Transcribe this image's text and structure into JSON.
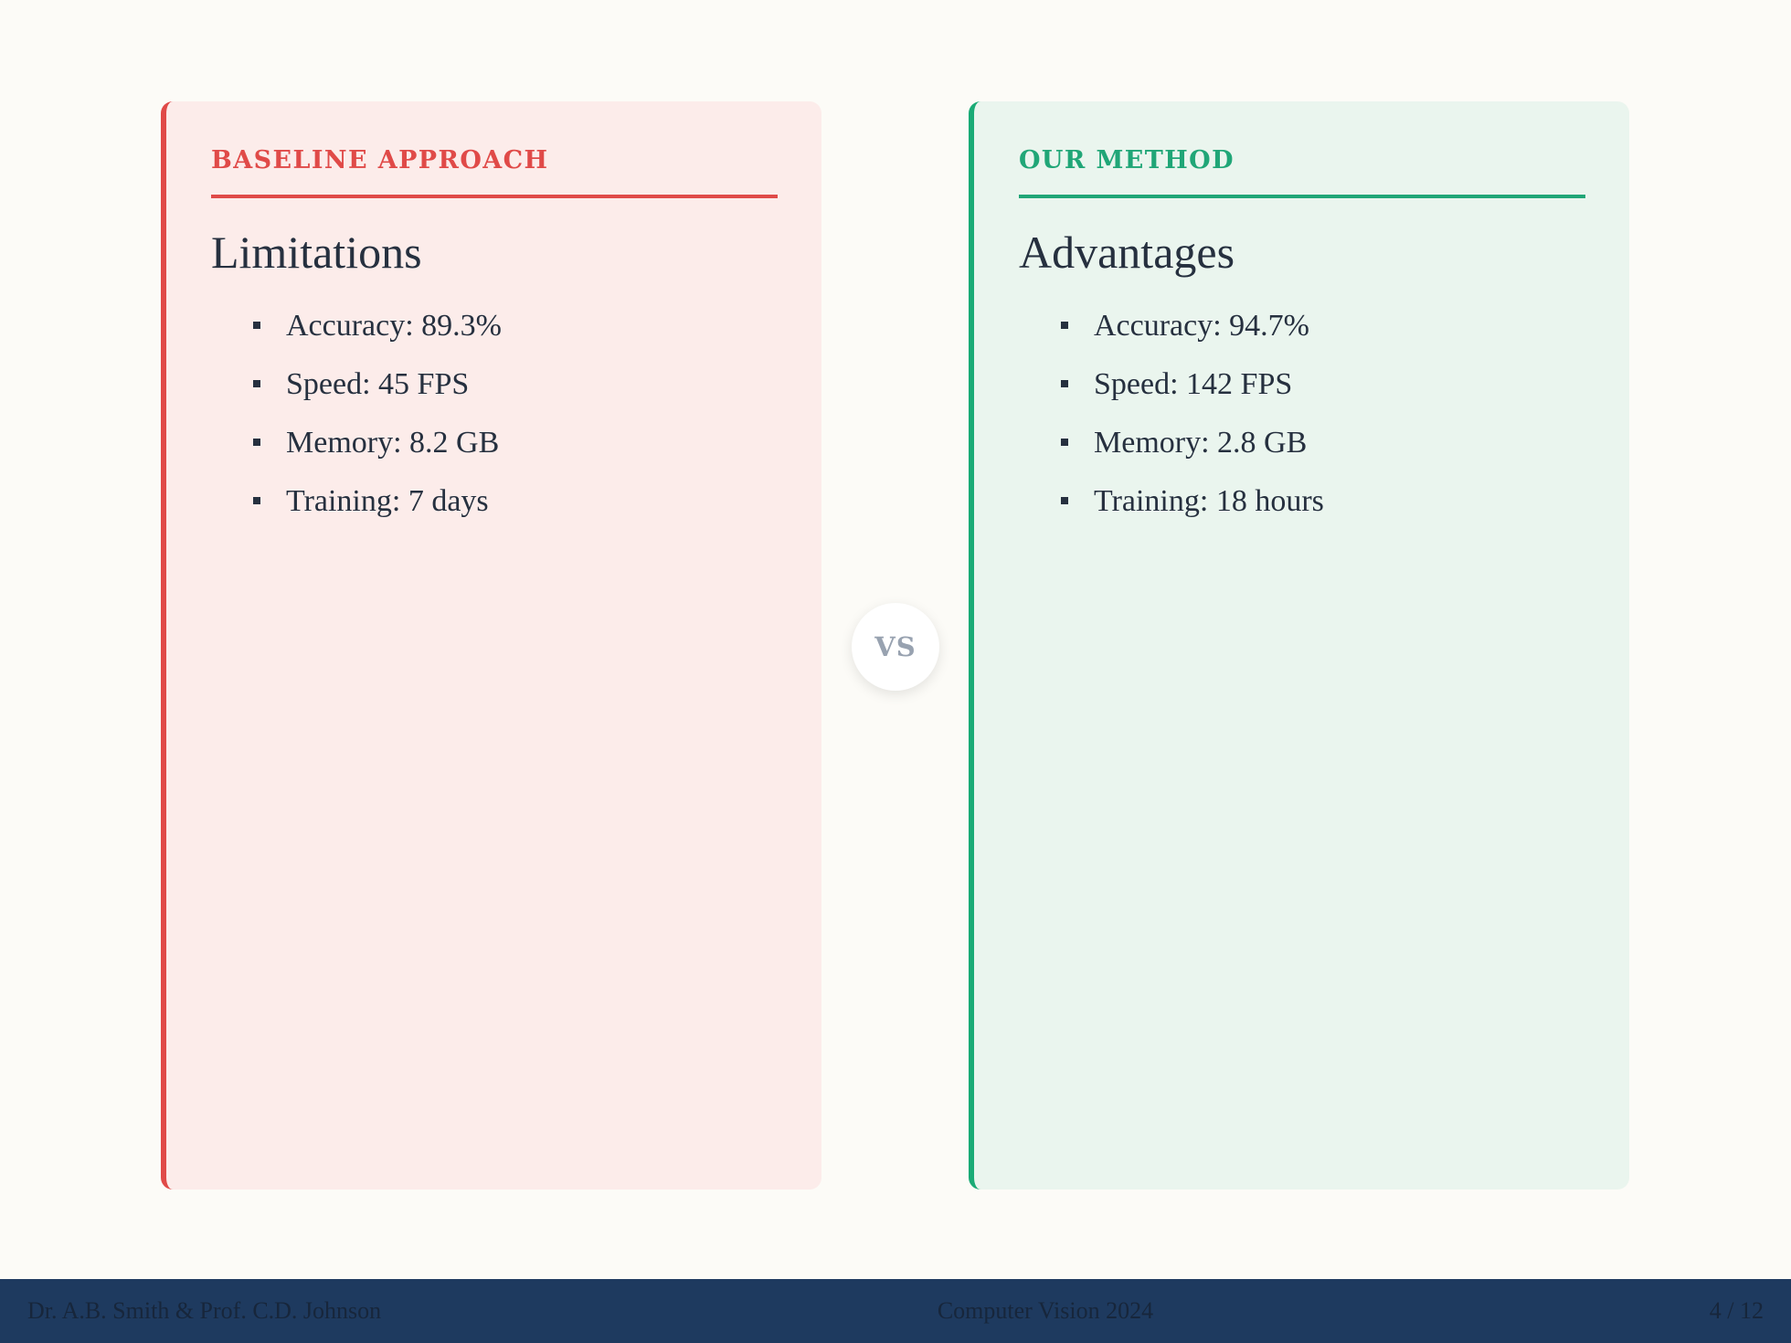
{
  "baseline": {
    "label": "Baseline Approach",
    "heading": "Limitations",
    "points": [
      "Accuracy: 89.3%",
      "Speed: 45 FPS",
      "Memory: 8.2 GB",
      "Training: 7 days"
    ]
  },
  "ours": {
    "label": "Our Method",
    "heading": "Advantages",
    "points": [
      "Accuracy: 94.7%",
      "Speed: 142 FPS",
      "Memory: 2.8 GB",
      "Training: 18 hours"
    ]
  },
  "vs_label": "VS",
  "footer": {
    "authors": "Dr. A.B. Smith & Prof. C.D. Johnson",
    "conference": "Computer Vision 2024",
    "page": "4 / 12"
  },
  "colors": {
    "background": "#fcfbf7",
    "baseline_accent": "#e04a48",
    "baseline_bg": "#fcecea",
    "ours_accent": "#1aab76",
    "ours_bg": "#eaf5ee",
    "footer_bg": "#1e3a5f"
  }
}
